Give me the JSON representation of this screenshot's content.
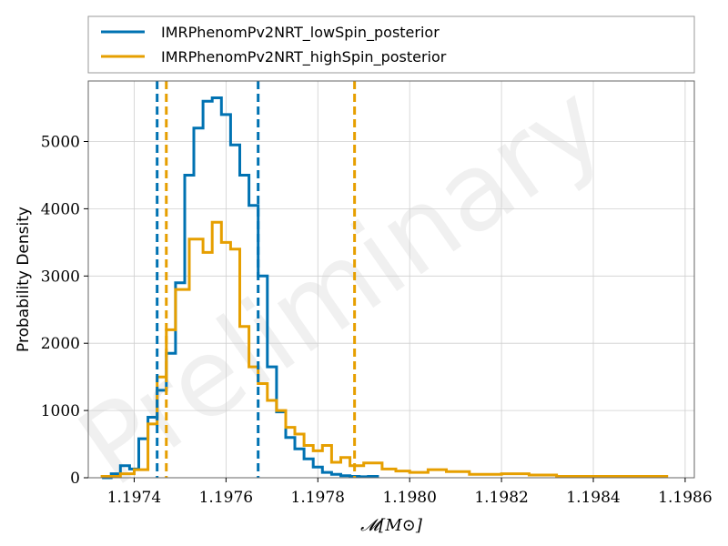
{
  "chart_data": {
    "type": "step-histogram",
    "xlabel": "𝓜[M⊙]",
    "ylabel": "Probability Density",
    "xlim": [
      1.1973,
      1.19862
    ],
    "ylim": [
      0,
      5900
    ],
    "xticks": [
      1.1974,
      1.1976,
      1.1978,
      1.198,
      1.1982,
      1.1984,
      1.1986
    ],
    "xtick_labels": [
      "1.1974",
      "1.1976",
      "1.1978",
      "1.1980",
      "1.1982",
      "1.1984",
      "1.1986"
    ],
    "yticks": [
      0,
      1000,
      2000,
      3000,
      4000,
      5000
    ],
    "ytick_labels": [
      "0",
      "1000",
      "2000",
      "3000",
      "4000",
      "5000"
    ],
    "grid": true,
    "legend_position": "top, outside plot",
    "watermark": "Preliminary",
    "series": [
      {
        "name": "IMRPhenomPv2NRT_lowSpin_posterior",
        "color": "#0072b2",
        "bin_edges": [
          1.19733,
          1.19735,
          1.19737,
          1.19739,
          1.19741,
          1.19743,
          1.19745,
          1.19747,
          1.19749,
          1.19751,
          1.19753,
          1.19755,
          1.19757,
          1.19759,
          1.19761,
          1.19763,
          1.19765,
          1.19767,
          1.19769,
          1.19771,
          1.19773,
          1.19775,
          1.19777,
          1.19779,
          1.19781,
          1.19783,
          1.19785,
          1.19787,
          1.19789,
          1.19791,
          1.19793
        ],
        "values": [
          0,
          60,
          180,
          130,
          580,
          900,
          1300,
          1850,
          2900,
          4500,
          5200,
          5600,
          5650,
          5400,
          4950,
          4500,
          4050,
          3000,
          1650,
          980,
          600,
          430,
          280,
          160,
          80,
          50,
          30,
          20,
          15,
          20
        ],
        "credible_interval": [
          1.19745,
          1.19767
        ]
      },
      {
        "name": "IMRPhenomPv2NRT_highSpin_posterior",
        "color": "#e69f00",
        "bin_edges": [
          1.19733,
          1.19737,
          1.1974,
          1.19743,
          1.19745,
          1.19747,
          1.19749,
          1.19752,
          1.19755,
          1.19757,
          1.19759,
          1.19761,
          1.19763,
          1.19765,
          1.19767,
          1.19769,
          1.19771,
          1.19773,
          1.19775,
          1.19777,
          1.19779,
          1.19781,
          1.19783,
          1.19785,
          1.19787,
          1.1979,
          1.19794,
          1.19797,
          1.198,
          1.19804,
          1.19808,
          1.19813,
          1.1982,
          1.19826,
          1.19832,
          1.1984,
          1.19848,
          1.19856
        ],
        "values": [
          20,
          60,
          120,
          800,
          1500,
          2200,
          2800,
          3550,
          3350,
          3800,
          3500,
          3400,
          2250,
          1650,
          1400,
          1150,
          1000,
          750,
          650,
          480,
          400,
          480,
          230,
          300,
          180,
          220,
          130,
          100,
          80,
          120,
          90,
          50,
          60,
          40,
          20,
          20,
          20
        ],
        "credible_interval": [
          1.19747,
          1.19788
        ]
      }
    ]
  }
}
